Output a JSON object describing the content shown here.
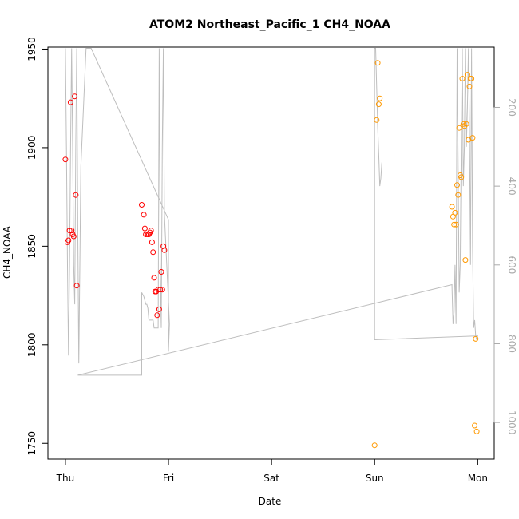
{
  "chart_data": {
    "type": "scatter",
    "title": "ATOM2 Northeast_Pacific_1 CH4_NOAA",
    "xlabel": "Date",
    "ylabel": "CH4_NOAA",
    "x_ticks": [
      {
        "label": "Thu",
        "value": 0
      },
      {
        "label": "Fri",
        "value": 1
      },
      {
        "label": "Sat",
        "value": 2
      },
      {
        "label": "Sun",
        "value": 3
      },
      {
        "label": "Mon",
        "value": 4
      }
    ],
    "y_ticks": [
      1750,
      1800,
      1850,
      1900,
      1950
    ],
    "y2_ticks": [
      200,
      400,
      600,
      800,
      1000
    ],
    "xlim": [
      -0.17,
      4.16
    ],
    "ylim": [
      1742,
      1951
    ],
    "y2lim": [
      47,
      1093
    ],
    "grid": false,
    "colors": {
      "series_red": "#ff0000",
      "series_orange": "#ff9900",
      "trace": "#bebebe",
      "axis": "#000000",
      "axis_right": "#aaaaaa"
    },
    "series": [
      {
        "color": "#ff0000",
        "points": [
          [
            0.0,
            1894
          ],
          [
            0.02,
            1852
          ],
          [
            0.03,
            1853
          ],
          [
            0.04,
            1858
          ],
          [
            0.05,
            1923
          ],
          [
            0.06,
            1858
          ],
          [
            0.07,
            1856
          ],
          [
            0.08,
            1855
          ],
          [
            0.09,
            1926
          ],
          [
            0.1,
            1876
          ],
          [
            0.11,
            1830
          ],
          [
            0.74,
            1871
          ],
          [
            0.76,
            1866
          ],
          [
            0.77,
            1859
          ],
          [
            0.78,
            1856
          ],
          [
            0.8,
            1856
          ],
          [
            0.81,
            1856
          ],
          [
            0.82,
            1857
          ],
          [
            0.83,
            1858
          ],
          [
            0.84,
            1852
          ],
          [
            0.85,
            1847
          ],
          [
            0.86,
            1834
          ],
          [
            0.87,
            1827
          ],
          [
            0.88,
            1827
          ],
          [
            0.89,
            1815
          ],
          [
            0.9,
            1828
          ],
          [
            0.91,
            1818
          ],
          [
            0.92,
            1828
          ],
          [
            0.93,
            1837
          ],
          [
            0.94,
            1828
          ],
          [
            0.95,
            1850
          ],
          [
            0.96,
            1848
          ]
        ]
      },
      {
        "color": "#ff9900",
        "points": [
          [
            3.0,
            1749
          ],
          [
            3.02,
            1914
          ],
          [
            3.03,
            1943
          ],
          [
            3.04,
            1922
          ],
          [
            3.05,
            1925
          ],
          [
            3.75,
            1870
          ],
          [
            3.76,
            1865
          ],
          [
            3.77,
            1861
          ],
          [
            3.78,
            1867
          ],
          [
            3.79,
            1861
          ],
          [
            3.8,
            1881
          ],
          [
            3.81,
            1876
          ],
          [
            3.82,
            1910
          ],
          [
            3.83,
            1886
          ],
          [
            3.84,
            1885
          ],
          [
            3.85,
            1935
          ],
          [
            3.86,
            1912
          ],
          [
            3.87,
            1911
          ],
          [
            3.88,
            1843
          ],
          [
            3.89,
            1912
          ],
          [
            3.9,
            1937
          ],
          [
            3.91,
            1904
          ],
          [
            3.92,
            1931
          ],
          [
            3.93,
            1935
          ],
          [
            3.94,
            1935
          ],
          [
            3.95,
            1905
          ],
          [
            3.97,
            1759
          ],
          [
            3.98,
            1803
          ],
          [
            3.99,
            1756
          ]
        ]
      }
    ],
    "trace": {
      "axis": "right",
      "points": [
        [
          0.0,
          50
        ],
        [
          0.01,
          300
        ],
        [
          0.02,
          600
        ],
        [
          0.03,
          830
        ],
        [
          0.04,
          600
        ],
        [
          0.05,
          300
        ],
        [
          0.06,
          50
        ],
        [
          0.07,
          300
        ],
        [
          0.08,
          600
        ],
        [
          0.09,
          700
        ],
        [
          0.1,
          300
        ],
        [
          0.11,
          50
        ],
        [
          0.12,
          500
        ],
        [
          0.13,
          850
        ],
        [
          0.15,
          350
        ],
        [
          0.2,
          50
        ],
        [
          0.25,
          50
        ],
        [
          1.0,
          485
        ],
        [
          1.0,
          820
        ],
        [
          1.01,
          750
        ],
        [
          0.96,
          470
        ],
        [
          0.95,
          50
        ],
        [
          0.94,
          300
        ],
        [
          0.93,
          760
        ],
        [
          0.92,
          600
        ],
        [
          0.91,
          50
        ],
        [
          0.9,
          760
        ],
        [
          0.89,
          760
        ],
        [
          0.88,
          760
        ],
        [
          0.87,
          760
        ],
        [
          0.86,
          760
        ],
        [
          0.85,
          740
        ],
        [
          0.84,
          740
        ],
        [
          0.83,
          740
        ],
        [
          0.82,
          740
        ],
        [
          0.81,
          740
        ],
        [
          0.8,
          710
        ],
        [
          0.79,
          700
        ],
        [
          0.78,
          700
        ],
        [
          0.77,
          690
        ],
        [
          0.76,
          680
        ],
        [
          0.75,
          675
        ],
        [
          0.74,
          670
        ],
        [
          0.74,
          880
        ],
        [
          0.12,
          880
        ],
        [
          3.75,
          650
        ],
        [
          3.75,
          655
        ],
        [
          3.76,
          750
        ],
        [
          3.77,
          720
        ],
        [
          3.78,
          600
        ],
        [
          3.79,
          750
        ],
        [
          3.8,
          50
        ],
        [
          3.82,
          670
        ],
        [
          3.83,
          600
        ],
        [
          3.84,
          300
        ],
        [
          3.85,
          50
        ],
        [
          3.86,
          400
        ],
        [
          3.87,
          300
        ],
        [
          3.88,
          50
        ],
        [
          3.89,
          300
        ],
        [
          3.9,
          200
        ],
        [
          3.91,
          50
        ],
        [
          3.92,
          250
        ],
        [
          3.93,
          600
        ],
        [
          3.94,
          50
        ],
        [
          3.95,
          550
        ],
        [
          3.96,
          760
        ],
        [
          3.97,
          740
        ],
        [
          3.98,
          780
        ],
        [
          3.99,
          790
        ],
        [
          4.0,
          780
        ],
        [
          3.0,
          790
        ],
        [
          3.0,
          50
        ],
        [
          3.01,
          50
        ],
        [
          3.02,
          150
        ],
        [
          3.03,
          250
        ],
        [
          3.04,
          320
        ],
        [
          3.05,
          400
        ],
        [
          3.06,
          380
        ],
        [
          3.07,
          340
        ]
      ]
    }
  }
}
